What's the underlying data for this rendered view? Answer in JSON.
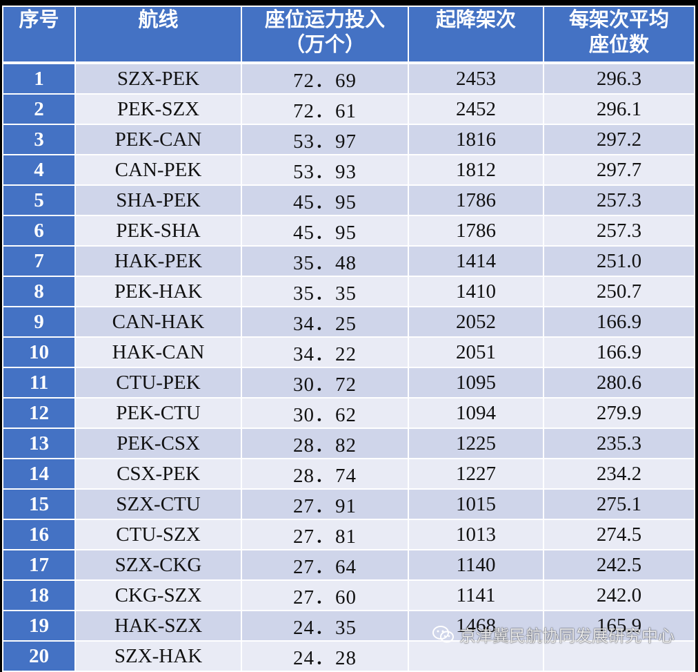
{
  "table": {
    "headers": [
      {
        "lines": [
          "序号"
        ]
      },
      {
        "lines": [
          "航线"
        ]
      },
      {
        "lines": [
          "座位运力投入",
          "（万个）"
        ]
      },
      {
        "lines": [
          "起降架次"
        ]
      },
      {
        "lines": [
          "每架次平均",
          "座位数"
        ]
      }
    ],
    "rows": [
      {
        "index": "1",
        "route": "SZX-PEK",
        "seats": "72．69",
        "flights": "2453",
        "avg_seats": "296.3"
      },
      {
        "index": "2",
        "route": "PEK-SZX",
        "seats": "72．61",
        "flights": "2452",
        "avg_seats": "296.1"
      },
      {
        "index": "3",
        "route": "PEK-CAN",
        "seats": "53．97",
        "flights": "1816",
        "avg_seats": "297.2"
      },
      {
        "index": "4",
        "route": "CAN-PEK",
        "seats": "53．93",
        "flights": "1812",
        "avg_seats": "297.7"
      },
      {
        "index": "5",
        "route": "SHA-PEK",
        "seats": "45．95",
        "flights": "1786",
        "avg_seats": "257.3"
      },
      {
        "index": "6",
        "route": "PEK-SHA",
        "seats": "45．95",
        "flights": "1786",
        "avg_seats": "257.3"
      },
      {
        "index": "7",
        "route": "HAK-PEK",
        "seats": "35．48",
        "flights": "1414",
        "avg_seats": "251.0"
      },
      {
        "index": "8",
        "route": "PEK-HAK",
        "seats": "35．35",
        "flights": "1410",
        "avg_seats": "250.7"
      },
      {
        "index": "9",
        "route": "CAN-HAK",
        "seats": "34．25",
        "flights": "2052",
        "avg_seats": "166.9"
      },
      {
        "index": "10",
        "route": "HAK-CAN",
        "seats": "34．22",
        "flights": "2051",
        "avg_seats": "166.9"
      },
      {
        "index": "11",
        "route": "CTU-PEK",
        "seats": "30．72",
        "flights": "1095",
        "avg_seats": "280.6"
      },
      {
        "index": "12",
        "route": "PEK-CTU",
        "seats": "30．62",
        "flights": "1094",
        "avg_seats": "279.9"
      },
      {
        "index": "13",
        "route": "PEK-CSX",
        "seats": "28．82",
        "flights": "1225",
        "avg_seats": "235.3"
      },
      {
        "index": "14",
        "route": "CSX-PEK",
        "seats": "28．74",
        "flights": "1227",
        "avg_seats": "234.2"
      },
      {
        "index": "15",
        "route": "SZX-CTU",
        "seats": "27．91",
        "flights": "1015",
        "avg_seats": "275.1"
      },
      {
        "index": "16",
        "route": "CTU-SZX",
        "seats": "27．81",
        "flights": "1013",
        "avg_seats": "274.5"
      },
      {
        "index": "17",
        "route": "SZX-CKG",
        "seats": "27．64",
        "flights": "1140",
        "avg_seats": "242.5"
      },
      {
        "index": "18",
        "route": "CKG-SZX",
        "seats": "27．60",
        "flights": "1141",
        "avg_seats": "242.0"
      },
      {
        "index": "19",
        "route": "HAK-SZX",
        "seats": "24．35",
        "flights": "1468",
        "avg_seats": "165.9"
      },
      {
        "index": "20",
        "route": "SZX-HAK",
        "seats": "24．28",
        "flights": "",
        "avg_seats": ""
      }
    ]
  },
  "watermark": {
    "icon": "wechat-icon",
    "text": "京津冀民航协同发展研究中心"
  },
  "colors": {
    "header_bg": "#4472c4",
    "row_odd": "#cfd5ea",
    "row_even": "#e9ebf5",
    "page_bg": "#000000"
  }
}
